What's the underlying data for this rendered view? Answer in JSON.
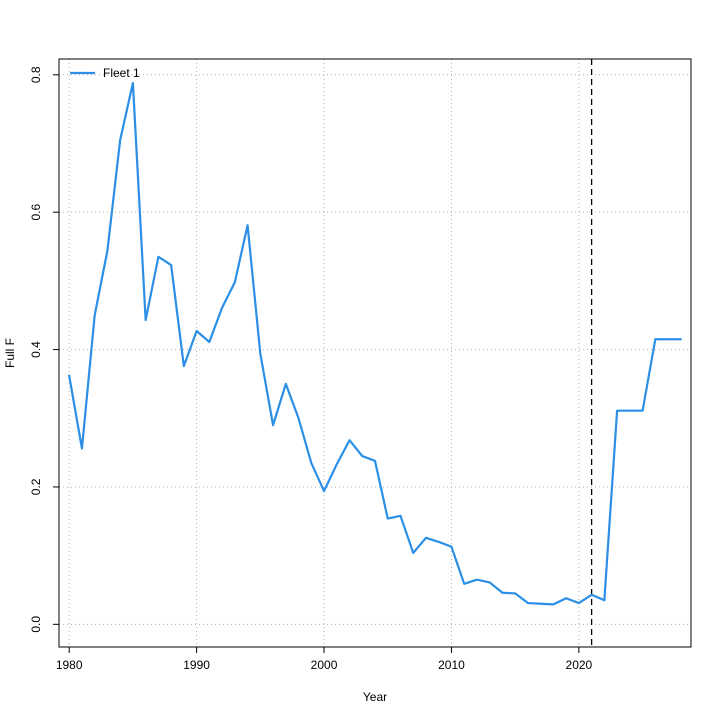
{
  "chart_data": {
    "type": "line",
    "title": "",
    "xlabel": "Year",
    "ylabel": "Full F",
    "xlim": [
      1979.2,
      2028.8
    ],
    "ylim": [
      -0.033,
      0.823
    ],
    "x_ticks": [
      1980,
      1990,
      2000,
      2010,
      2020
    ],
    "y_ticks": [
      0.0,
      0.2,
      0.4,
      0.6,
      0.8
    ],
    "x_tick_labels": [
      "1980",
      "1990",
      "2000",
      "2010",
      "2020"
    ],
    "y_tick_labels": [
      "0.0",
      "0.2",
      "0.4",
      "0.6",
      "0.8"
    ],
    "grid": true,
    "legend_position": "top-left",
    "vline": {
      "x": 2021,
      "style": "dashed",
      "color": "#000000"
    },
    "series": [
      {
        "name": "Fleet 1",
        "color": "#2C8FE6",
        "x": [
          1980,
          1981,
          1982,
          1983,
          1984,
          1985,
          1986,
          1987,
          1988,
          1989,
          1990,
          1991,
          1992,
          1993,
          1994,
          1995,
          1996,
          1997,
          1998,
          1999,
          2000,
          2001,
          2002,
          2003,
          2004,
          2005,
          2006,
          2007,
          2008,
          2009,
          2010,
          2011,
          2012,
          2013,
          2014,
          2015,
          2016,
          2017,
          2018,
          2019,
          2020,
          2021,
          2022,
          2023,
          2024,
          2025,
          2026,
          2027,
          2028
        ],
        "values": [
          0.362,
          0.256,
          0.45,
          0.544,
          0.705,
          0.788,
          0.443,
          0.535,
          0.523,
          0.376,
          0.427,
          0.411,
          0.461,
          0.498,
          0.581,
          0.394,
          0.29,
          0.35,
          0.3,
          0.235,
          0.194,
          0.233,
          0.268,
          0.245,
          0.238,
          0.154,
          0.158,
          0.104,
          0.126,
          0.12,
          0.113,
          0.059,
          0.065,
          0.061,
          0.046,
          0.045,
          0.031,
          0.03,
          0.029,
          0.038,
          0.031,
          0.043,
          0.035,
          0.311,
          0.311,
          0.311,
          0.415,
          0.415,
          0.415
        ]
      }
    ]
  }
}
